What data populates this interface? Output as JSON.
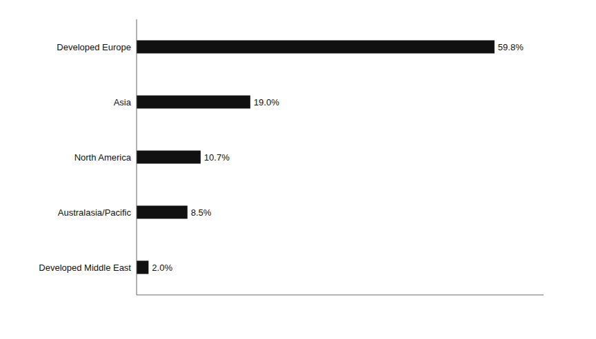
{
  "chart_data": {
    "type": "bar",
    "orientation": "horizontal",
    "categories": [
      "Developed Middle East",
      "Australasia/Pacific",
      "North America",
      "Asia",
      "Developed Europe"
    ],
    "values": [
      2.0,
      8.5,
      10.7,
      19.0,
      59.8
    ],
    "value_labels": [
      "2.0%",
      "8.5%",
      "10.7%",
      "19.0%",
      "59.8%"
    ],
    "data_labels": true,
    "color": "#111111",
    "xlim": [
      0,
      68
    ],
    "tick_labels": "y",
    "grid": false
  }
}
